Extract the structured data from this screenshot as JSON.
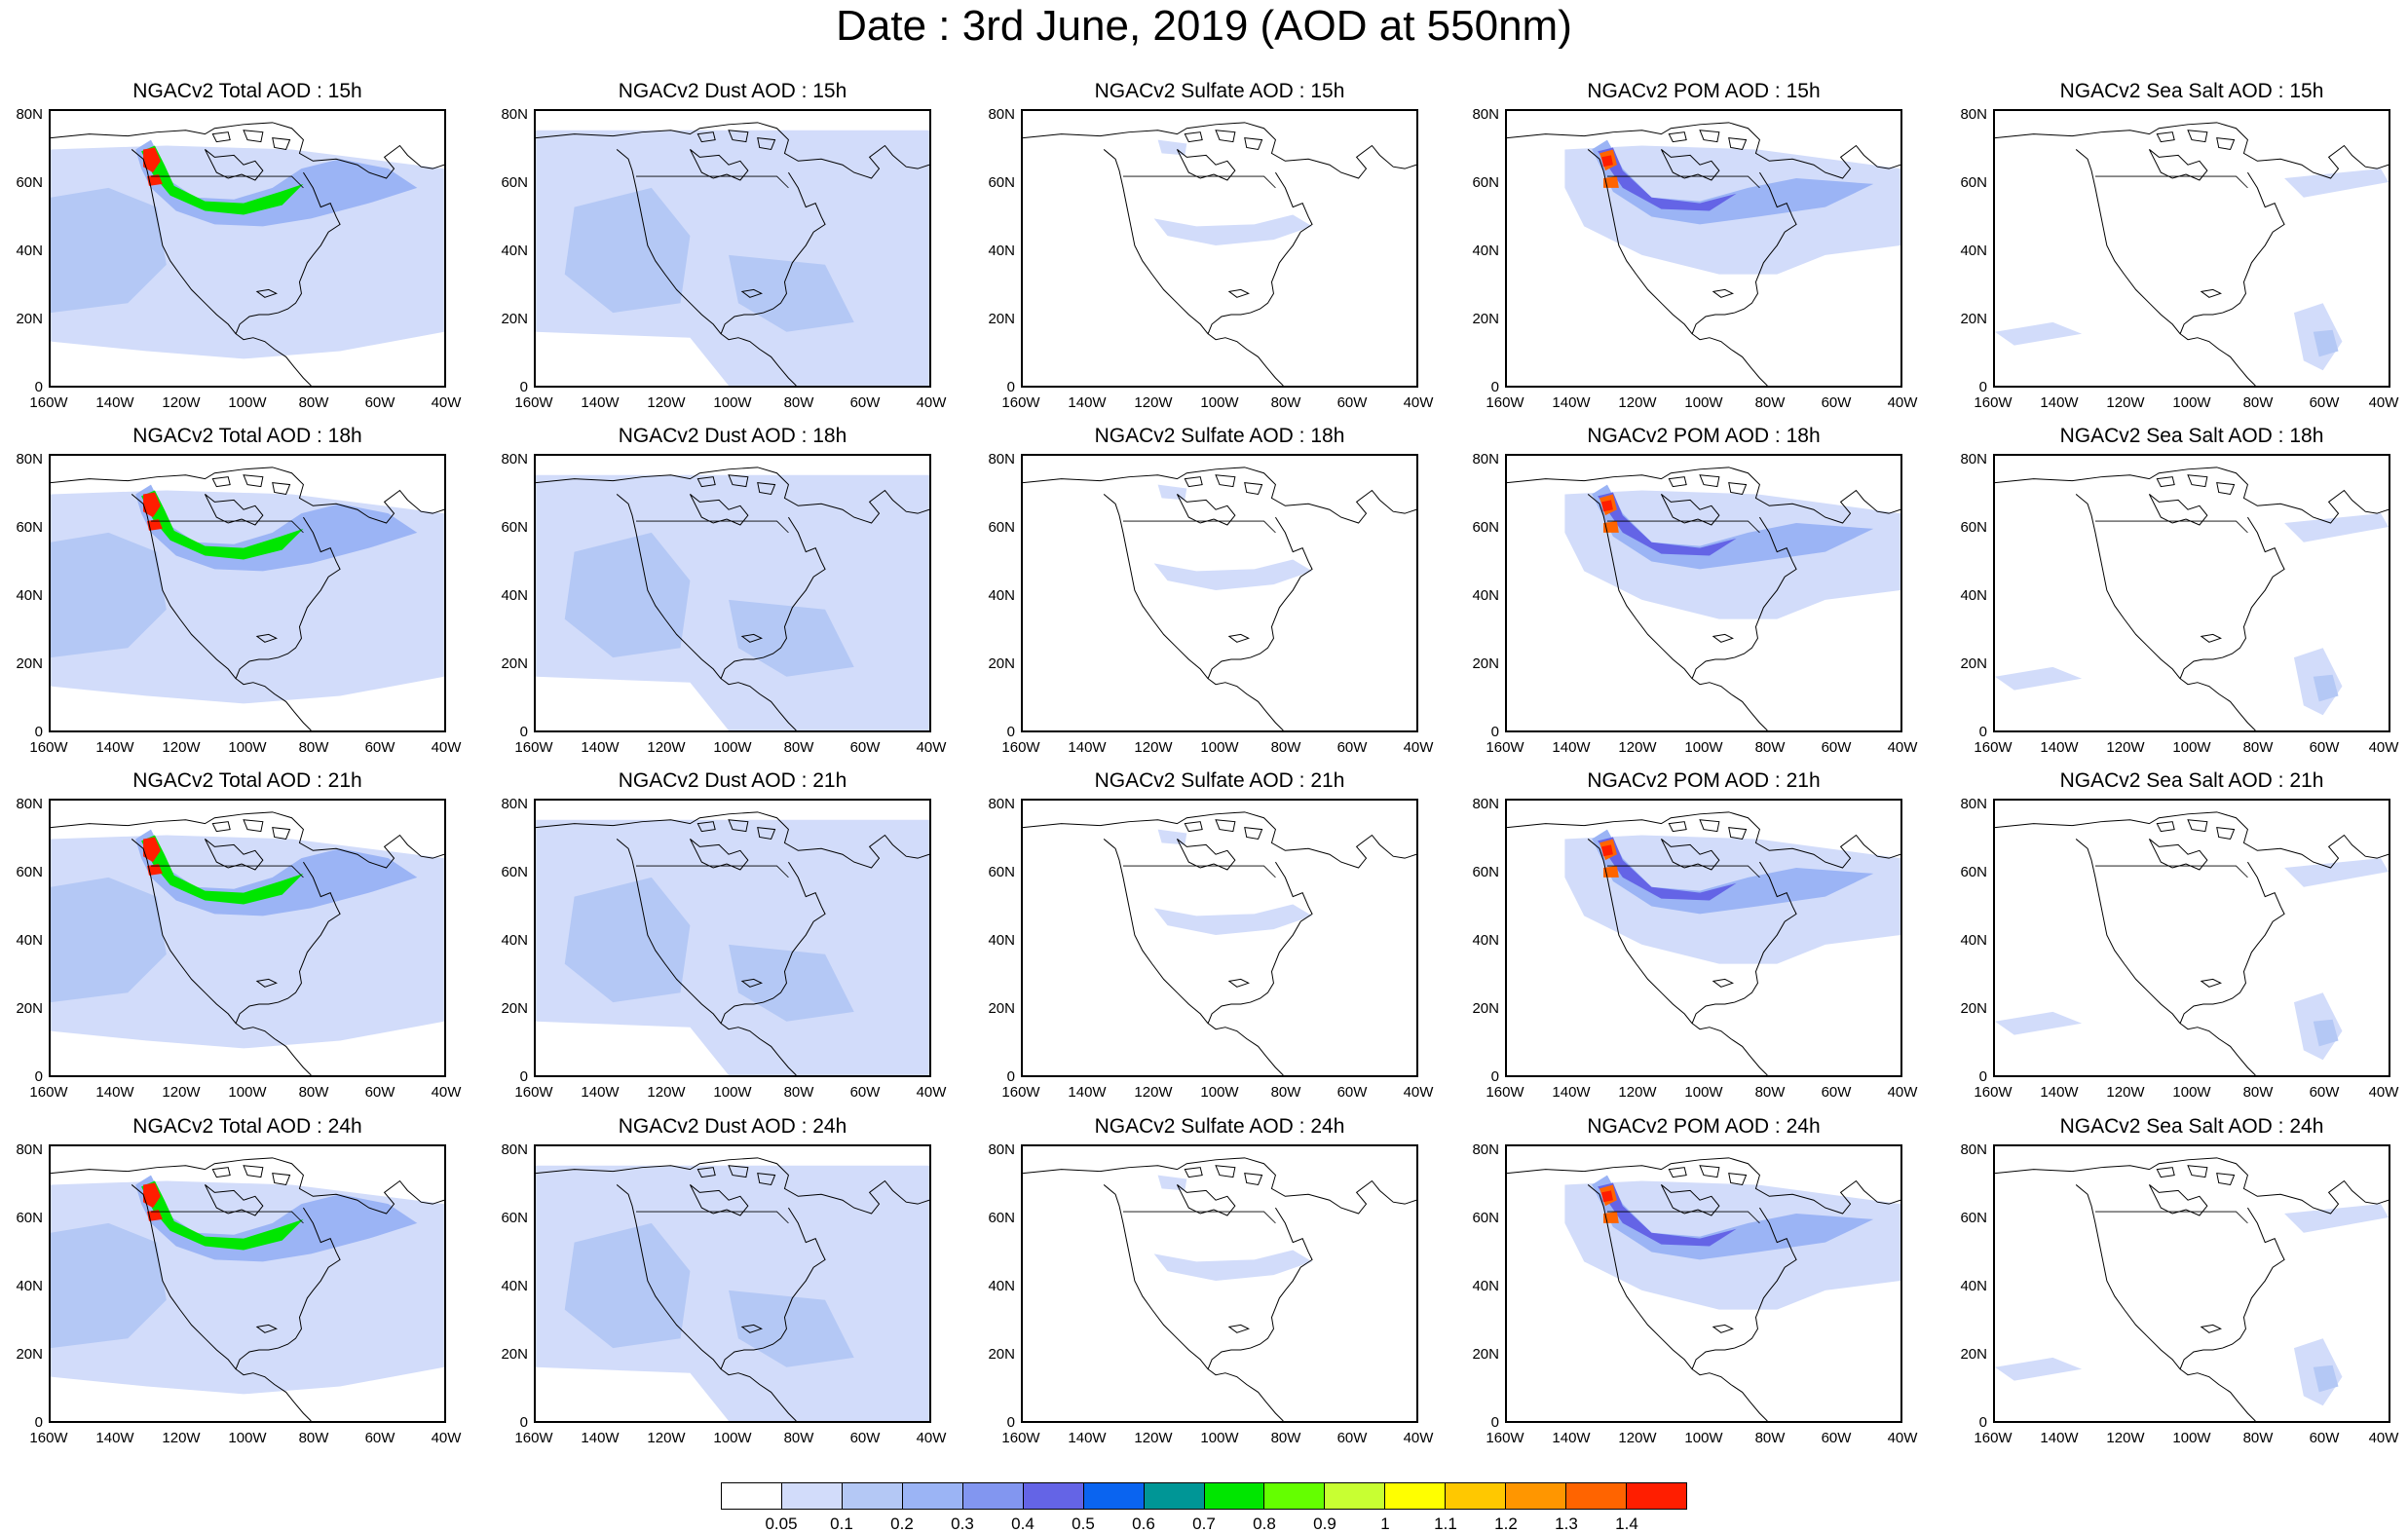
{
  "title": "Date : 3rd June, 2019 (AOD at 550nm)",
  "panels": [
    {
      "title": "NGACv2 Total AOD : 15h",
      "species": "total"
    },
    {
      "title": "NGACv2 Dust AOD : 15h",
      "species": "dust"
    },
    {
      "title": "NGACv2 Sulfate AOD : 15h",
      "species": "sulfate"
    },
    {
      "title": "NGACv2 POM AOD : 15h",
      "species": "pom"
    },
    {
      "title": "NGACv2 Sea Salt AOD : 15h",
      "species": "seasalt"
    },
    {
      "title": "NGACv2 Total AOD : 18h",
      "species": "total"
    },
    {
      "title": "NGACv2 Dust AOD : 18h",
      "species": "dust"
    },
    {
      "title": "NGACv2 Sulfate AOD : 18h",
      "species": "sulfate"
    },
    {
      "title": "NGACv2 POM AOD : 18h",
      "species": "pom"
    },
    {
      "title": "NGACv2 Sea Salt AOD : 18h",
      "species": "seasalt"
    },
    {
      "title": "NGACv2 Total AOD : 21h",
      "species": "total"
    },
    {
      "title": "NGACv2 Dust AOD : 21h",
      "species": "dust"
    },
    {
      "title": "NGACv2 Sulfate AOD : 21h",
      "species": "sulfate"
    },
    {
      "title": "NGACv2 POM AOD : 21h",
      "species": "pom"
    },
    {
      "title": "NGACv2 Sea Salt AOD : 21h",
      "species": "seasalt"
    },
    {
      "title": "NGACv2 Total AOD : 24h",
      "species": "total"
    },
    {
      "title": "NGACv2 Dust AOD : 24h",
      "species": "dust"
    },
    {
      "title": "NGACv2 Sulfate AOD : 24h",
      "species": "sulfate"
    },
    {
      "title": "NGACv2 POM AOD : 24h",
      "species": "pom"
    },
    {
      "title": "NGACv2 Sea Salt  AOD : 24h",
      "species": "seasalt"
    }
  ],
  "lat_ticks": [
    "0",
    "20N",
    "40N",
    "60N",
    "80N"
  ],
  "lon_ticks": [
    "160W",
    "140W",
    "120W",
    "100W",
    "80W",
    "60W",
    "40W"
  ],
  "colorbar": {
    "labels": [
      "0.05",
      "0.1",
      "0.2",
      "0.3",
      "0.4",
      "0.5",
      "0.6",
      "0.7",
      "0.8",
      "0.9",
      "1",
      "1.1",
      "1.2",
      "1.3",
      "1.4"
    ],
    "colors": [
      "#ffffff",
      "#d2dcfa",
      "#b4c8f5",
      "#9bb4f5",
      "#8296f0",
      "#6464e6",
      "#0a64f0",
      "#009696",
      "#00e600",
      "#64ff00",
      "#c8ff32",
      "#ffff00",
      "#ffc800",
      "#ff9600",
      "#ff6400",
      "#ff1e00"
    ]
  },
  "colors": {
    "land_outline": "#000000",
    "background_aod": "#d2dcfa",
    "moderate_aod": "#b4c8f5"
  }
}
